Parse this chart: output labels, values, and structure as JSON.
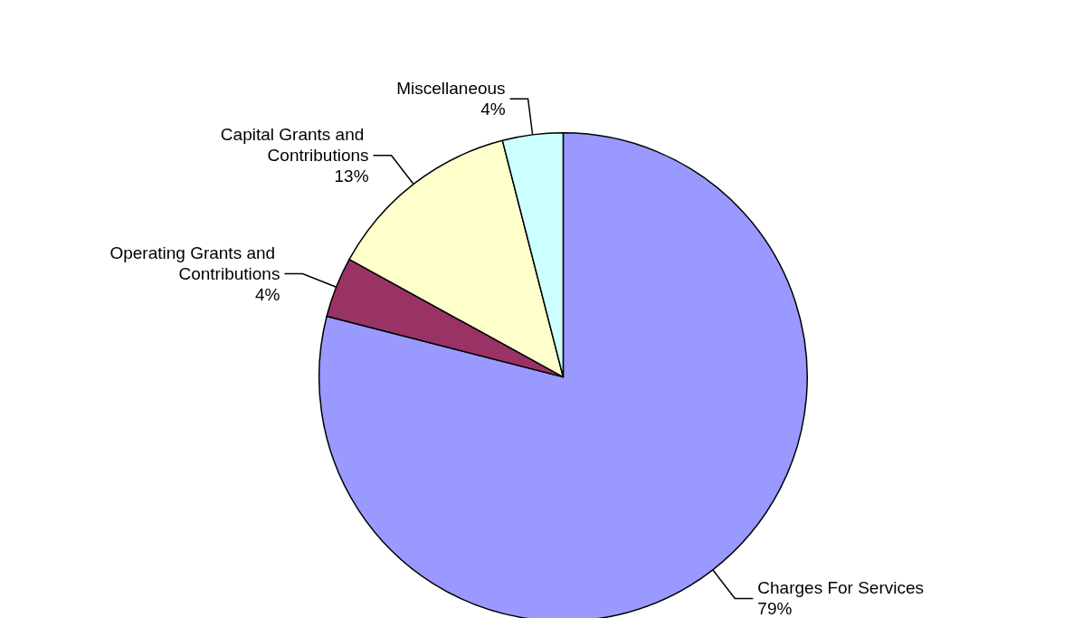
{
  "chart_data": {
    "type": "pie",
    "categories": [
      "Charges For Services",
      "Operating Grants and Contributions",
      "Capital Grants and Contributions",
      "Miscellaneous"
    ],
    "values": [
      79,
      4,
      13,
      4
    ],
    "value_labels": [
      "79%",
      "4%",
      "13%",
      "4%"
    ],
    "colors": [
      "#9999ff",
      "#993366",
      "#ffffcc",
      "#ccffff"
    ],
    "legend": false
  }
}
